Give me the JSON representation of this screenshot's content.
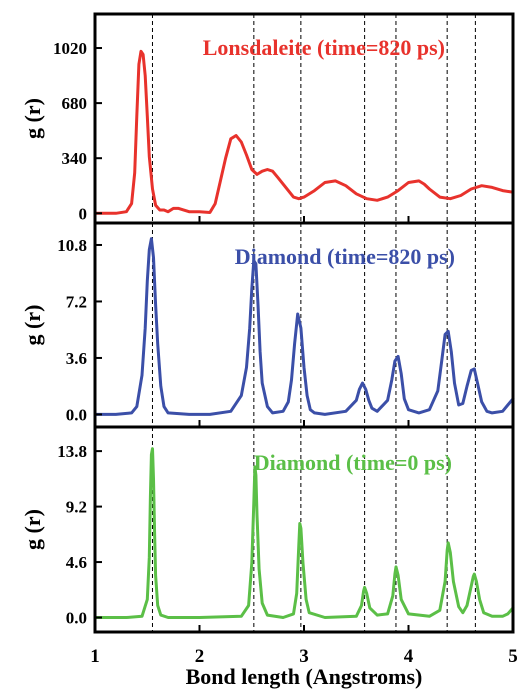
{
  "chart_data": [
    {
      "type": "line",
      "title": "Lonsdaleite (time=820 ps)",
      "color": "#e8322c",
      "ylabel": "g (r)",
      "xlim": [
        1,
        5
      ],
      "ylim": [
        -60,
        1230
      ],
      "yticks": [
        "0",
        "340",
        "680",
        "1020"
      ],
      "ytick_values": [
        0,
        340,
        680,
        1020
      ],
      "x": [
        1.0,
        1.1,
        1.2,
        1.3,
        1.35,
        1.38,
        1.4,
        1.42,
        1.44,
        1.46,
        1.48,
        1.5,
        1.52,
        1.55,
        1.58,
        1.62,
        1.66,
        1.7,
        1.75,
        1.8,
        1.9,
        2.0,
        2.1,
        2.15,
        2.2,
        2.25,
        2.3,
        2.35,
        2.4,
        2.45,
        2.5,
        2.55,
        2.6,
        2.65,
        2.7,
        2.75,
        2.8,
        2.85,
        2.9,
        2.95,
        3.0,
        3.1,
        3.2,
        3.3,
        3.4,
        3.5,
        3.6,
        3.7,
        3.8,
        3.9,
        4.0,
        4.1,
        4.15,
        4.2,
        4.3,
        4.4,
        4.5,
        4.6,
        4.7,
        4.8,
        4.9,
        5.0
      ],
      "y": [
        0,
        0,
        0,
        10,
        60,
        250,
        600,
        920,
        1000,
        980,
        850,
        600,
        350,
        150,
        50,
        20,
        20,
        10,
        30,
        30,
        10,
        10,
        5,
        60,
        200,
        340,
        460,
        480,
        440,
        360,
        270,
        240,
        260,
        270,
        260,
        220,
        180,
        140,
        100,
        90,
        100,
        140,
        190,
        200,
        170,
        120,
        90,
        80,
        100,
        140,
        190,
        200,
        180,
        150,
        100,
        90,
        110,
        150,
        170,
        160,
        140,
        130
      ]
    },
    {
      "type": "line",
      "title": "Diamond (time=820 ps)",
      "color": "#3b4fa8",
      "ylabel": "g (r)",
      "xlim": [
        1,
        5
      ],
      "ylim": [
        -0.8,
        12.2
      ],
      "yticks": [
        "0.0",
        "3.6",
        "7.2",
        "10.8"
      ],
      "ytick_values": [
        0,
        3.6,
        7.2,
        10.8
      ],
      "x": [
        1.0,
        1.2,
        1.35,
        1.4,
        1.45,
        1.48,
        1.5,
        1.52,
        1.54,
        1.56,
        1.58,
        1.6,
        1.63,
        1.66,
        1.7,
        1.9,
        2.1,
        2.3,
        2.4,
        2.45,
        2.48,
        2.5,
        2.52,
        2.54,
        2.56,
        2.58,
        2.6,
        2.65,
        2.7,
        2.8,
        2.85,
        2.88,
        2.91,
        2.94,
        2.97,
        3.0,
        3.03,
        3.06,
        3.1,
        3.2,
        3.4,
        3.5,
        3.53,
        3.56,
        3.59,
        3.62,
        3.65,
        3.7,
        3.8,
        3.84,
        3.87,
        3.9,
        3.93,
        3.96,
        4.0,
        4.1,
        4.2,
        4.28,
        4.32,
        4.35,
        4.38,
        4.41,
        4.44,
        4.48,
        4.52,
        4.56,
        4.6,
        4.63,
        4.66,
        4.7,
        4.75,
        4.8,
        4.9,
        4.95,
        5.0
      ],
      "y": [
        0,
        0,
        0.1,
        0.5,
        2.5,
        5.5,
        8.5,
        10.5,
        11.2,
        10.0,
        7.0,
        4.5,
        1.8,
        0.5,
        0.1,
        0,
        0,
        0.2,
        1.2,
        3.0,
        5.5,
        8.0,
        9.8,
        9.6,
        7.0,
        4.0,
        2.0,
        0.5,
        0.1,
        0.2,
        0.8,
        2.2,
        4.5,
        6.4,
        5.5,
        3.0,
        1.2,
        0.3,
        0.1,
        0,
        0.2,
        0.9,
        1.6,
        2.0,
        1.6,
        0.9,
        0.4,
        0.2,
        0.9,
        2.2,
        3.4,
        3.7,
        2.6,
        1.0,
        0.3,
        0.1,
        0.3,
        1.5,
        3.5,
        5.1,
        5.3,
        4.0,
        2.0,
        0.6,
        0.7,
        1.8,
        2.8,
        2.9,
        2.0,
        0.8,
        0.2,
        0.1,
        0.2,
        0.6,
        1.0
      ]
    },
    {
      "type": "line",
      "title": "Diamond (time=0 ps)",
      "color": "#5bbf47",
      "ylabel": "g (r)",
      "xlabel": "Bond length (Angstroms)",
      "xticks": [
        "1",
        "2",
        "3",
        "4",
        "5"
      ],
      "xtick_values": [
        1,
        2,
        3,
        4,
        5
      ],
      "xlim": [
        1,
        5
      ],
      "ylim": [
        -1.2,
        15.8
      ],
      "yticks": [
        "0.0",
        "4.6",
        "9.2",
        "13.8"
      ],
      "ytick_values": [
        0,
        4.6,
        9.2,
        13.8
      ],
      "x": [
        1.0,
        1.3,
        1.45,
        1.5,
        1.52,
        1.53,
        1.54,
        1.55,
        1.56,
        1.57,
        1.58,
        1.6,
        1.63,
        1.7,
        2.0,
        2.4,
        2.47,
        2.5,
        2.52,
        2.53,
        2.54,
        2.55,
        2.57,
        2.6,
        2.65,
        2.8,
        2.9,
        2.93,
        2.95,
        2.96,
        2.97,
        2.99,
        3.02,
        3.05,
        3.2,
        3.5,
        3.55,
        3.57,
        3.58,
        3.6,
        3.63,
        3.7,
        3.8,
        3.85,
        3.87,
        3.88,
        3.9,
        3.93,
        4.0,
        4.2,
        4.3,
        4.35,
        4.37,
        4.38,
        4.4,
        4.43,
        4.48,
        4.52,
        4.56,
        4.6,
        4.62,
        4.63,
        4.65,
        4.68,
        4.72,
        4.8,
        4.9,
        4.95,
        5.0
      ],
      "y": [
        0,
        0,
        0.1,
        1.5,
        5.0,
        10.0,
        13.5,
        14.0,
        11.5,
        7.0,
        3.5,
        1.0,
        0.2,
        0,
        0,
        0.1,
        1.0,
        4.5,
        9.5,
        12.5,
        11.8,
        8.5,
        4.0,
        1.2,
        0.2,
        0,
        0.3,
        2.0,
        6.0,
        7.8,
        7.4,
        4.5,
        1.5,
        0.4,
        0,
        0.1,
        1.0,
        2.2,
        2.5,
        2.0,
        0.8,
        0.2,
        0.3,
        1.8,
        3.6,
        4.2,
        3.5,
        1.5,
        0.3,
        0.1,
        0.6,
        3.0,
        5.6,
        6.2,
        5.4,
        3.0,
        0.9,
        0.4,
        1.0,
        2.6,
        3.4,
        3.6,
        3.0,
        1.5,
        0.4,
        0.1,
        0.1,
        0.3,
        0.8
      ]
    }
  ],
  "reference_lines_x": [
    1.55,
    2.52,
    2.97,
    3.58,
    3.88,
    4.37,
    4.64
  ]
}
